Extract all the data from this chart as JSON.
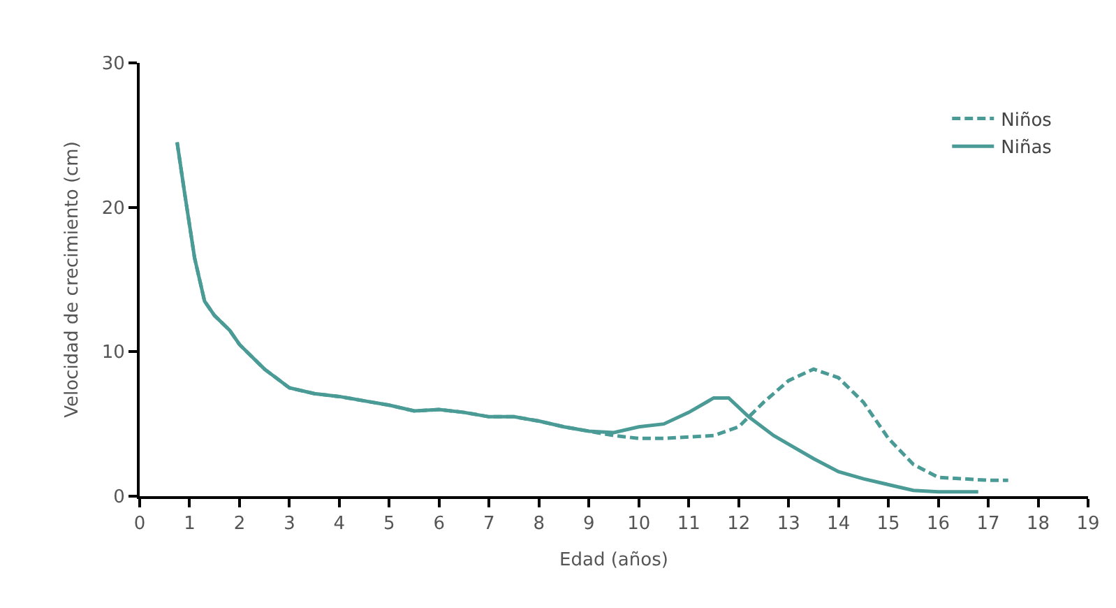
{
  "chart_data": {
    "type": "line",
    "xlabel": "Edad (años)",
    "ylabel": "Velocidad de crecimiento (cm)",
    "xlim": [
      0,
      19
    ],
    "ylim": [
      0,
      30
    ],
    "xticks": [
      0,
      1,
      2,
      3,
      4,
      5,
      6,
      7,
      8,
      9,
      10,
      11,
      12,
      13,
      14,
      15,
      16,
      17,
      18,
      19
    ],
    "yticks": [
      0,
      10,
      20,
      30
    ],
    "grid": false,
    "legend": "top right",
    "marker": "none",
    "series": [
      {
        "name": "Niños",
        "color": "#4a9a96",
        "line_style": "dashed",
        "x": [
          0.75,
          0.9,
          1.1,
          1.3,
          1.5,
          1.8,
          2,
          2.5,
          3,
          3.5,
          4,
          4.5,
          5,
          5.5,
          6,
          6.5,
          7,
          7.5,
          8,
          8.5,
          9,
          9.5,
          10,
          10.5,
          11,
          11.5,
          12,
          12.5,
          13,
          13.5,
          14,
          14.5,
          15,
          15.5,
          16,
          16.5,
          17,
          17.4
        ],
        "values": [
          24.5,
          21,
          16.5,
          13.5,
          12.5,
          11.5,
          10.5,
          8.8,
          7.5,
          7.1,
          6.9,
          6.6,
          6.3,
          5.9,
          6.0,
          5.8,
          5.5,
          5.5,
          5.2,
          4.8,
          4.5,
          4.2,
          4.0,
          4.0,
          4.1,
          4.2,
          4.8,
          6.5,
          8.0,
          8.8,
          8.2,
          6.5,
          4.0,
          2.2,
          1.3,
          1.2,
          1.1,
          1.1
        ]
      },
      {
        "name": "Niñas",
        "color": "#4a9a96",
        "line_style": "solid",
        "x": [
          0.75,
          0.9,
          1.1,
          1.3,
          1.5,
          1.8,
          2,
          2.5,
          3,
          3.5,
          4,
          4.5,
          5,
          5.5,
          6,
          6.5,
          7,
          7.5,
          8,
          8.5,
          9,
          9.5,
          10,
          10.5,
          11,
          11.5,
          11.8,
          12.2,
          12.7,
          13,
          13.5,
          14,
          14.5,
          15,
          15.5,
          16,
          16.8
        ],
        "values": [
          24.5,
          21,
          16.5,
          13.5,
          12.5,
          11.5,
          10.5,
          8.8,
          7.5,
          7.1,
          6.9,
          6.6,
          6.3,
          5.9,
          6.0,
          5.8,
          5.5,
          5.5,
          5.2,
          4.8,
          4.5,
          4.4,
          4.8,
          5.0,
          5.8,
          6.8,
          6.8,
          5.5,
          4.2,
          3.6,
          2.6,
          1.7,
          1.2,
          0.8,
          0.4,
          0.3,
          0.3
        ]
      }
    ]
  }
}
